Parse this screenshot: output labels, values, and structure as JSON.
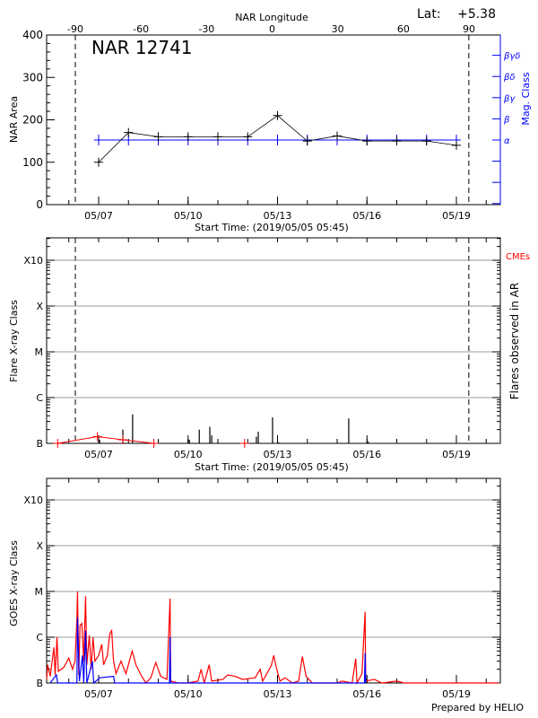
{
  "header": {
    "lat_label": "Lat:",
    "lat_value": "+5.38",
    "region_title": "NAR 12741"
  },
  "footer": {
    "credit": "Prepared by HELIO"
  },
  "colors": {
    "area": "#000000",
    "mag_class": "#0000ff",
    "cme": "#ff0000",
    "goes_long": "#ff0000",
    "goes_short": "#0000ff",
    "grid": "#999999"
  },
  "chart_data": [
    {
      "type": "line",
      "panel": "nar",
      "title": "NAR 12741",
      "xlabel": "Start Time: (2019/05/05 05:45)",
      "ylabel": "NAR Area",
      "y2label": "Mag. Class",
      "top_axis_label": "NAR Longitude",
      "top_ticks": [
        "-90",
        "-60",
        "-30",
        "0",
        "30",
        "60",
        "90"
      ],
      "x_ticks": [
        "05/07",
        "05/10",
        "05/13",
        "05/16",
        "05/19"
      ],
      "xlim": [
        "05/05 05:45",
        "05/20 11:00"
      ],
      "ylim": [
        0,
        400
      ],
      "y_ticks": [
        "0",
        "100",
        "200",
        "300",
        "400"
      ],
      "y2_ticks": [
        "α",
        "β",
        "βγ",
        "βδ",
        "βγδ"
      ],
      "limb_markers": [
        "05/06 05:15",
        "05/19 10:00"
      ],
      "series": [
        {
          "key": "area",
          "x": [
            "05/07",
            "05/08",
            "05/09",
            "05/10",
            "05/11",
            "05/12",
            "05/13",
            "05/14",
            "05/15",
            "05/16",
            "05/17",
            "05/18",
            "05/19"
          ],
          "values": [
            100,
            170,
            160,
            160,
            160,
            160,
            210,
            150,
            162,
            150,
            150,
            150,
            140
          ]
        },
        {
          "key": "mag_class",
          "x": [
            "05/07",
            "05/08",
            "05/09",
            "05/10",
            "05/11",
            "05/12",
            "05/13",
            "05/14",
            "05/15",
            "05/16",
            "05/17",
            "05/18",
            "05/19"
          ],
          "values": [
            "α",
            "α",
            "α",
            "α",
            "α",
            "α",
            "α",
            "α",
            "α",
            "α",
            "α",
            "α",
            "α"
          ]
        }
      ]
    },
    {
      "type": "bar",
      "panel": "flares",
      "xlabel": "Start Time: (2019/05/05 05:45)",
      "ylabel": "Flare X-ray Class",
      "y2label": "Flares observed in AR",
      "cme_label": "CMEs",
      "x_ticks": [
        "05/07",
        "05/10",
        "05/13",
        "05/16",
        "05/19"
      ],
      "y_ticks": [
        "B",
        "C",
        "M",
        "X",
        "X10"
      ],
      "yscale": "log",
      "grid": true,
      "limb_markers": [
        "05/06 05:15",
        "05/19 10:00"
      ],
      "flares": [
        {
          "t": "05/07 00:45",
          "flux": 1.2e-07
        },
        {
          "t": "05/07 19:30",
          "flux": 2e-07
        },
        {
          "t": "05/08 03:20",
          "flux": 4.3e-07
        },
        {
          "t": "05/10 01:00",
          "flux": 1.2e-07
        },
        {
          "t": "05/10 09:00",
          "flux": 2e-07
        },
        {
          "t": "05/10 17:30",
          "flux": 2.3e-07
        },
        {
          "t": "05/10 19:00",
          "flux": 1.5e-07
        },
        {
          "t": "05/11 00:00",
          "flux": 1.05e-07
        },
        {
          "t": "05/12 07:00",
          "flux": 1.4e-07
        },
        {
          "t": "05/12 08:30",
          "flux": 1.8e-07
        },
        {
          "t": "05/12 20:00",
          "flux": 3.7e-07
        },
        {
          "t": "05/13 01:00",
          "flux": 1.05e-07
        },
        {
          "t": "05/15 09:20",
          "flux": 3.5e-07
        },
        {
          "t": "05/16 01:00",
          "flux": 1.1e-07
        }
      ],
      "cmes": [
        {
          "t": "05/05 15:00",
          "flux": 1e-07
        },
        {
          "t": "05/06 23:00",
          "flux": 1.4e-07
        },
        {
          "t": "05/07 19:30",
          "flux": 1.2e-07
        },
        {
          "t": "05/08 20:30",
          "flux": 1e-07
        },
        {
          "t": "05/11 21:30",
          "flux": 1e-07
        }
      ]
    },
    {
      "type": "line",
      "panel": "goes",
      "ylabel": "GOES X-ray Class",
      "x_ticks": [
        "05/07",
        "05/10",
        "05/13",
        "05/16",
        "05/19"
      ],
      "y_ticks": [
        "B",
        "C",
        "M",
        "X",
        "X10"
      ],
      "yscale": "log",
      "grid": true,
      "series": [
        {
          "key": "goes_long",
          "points": [
            [
              "05/05 06:00",
              1.2e-07
            ],
            [
              "05/05 07:00",
              2.5e-07
            ],
            [
              "05/05 09:00",
              1.4e-07
            ],
            [
              "05/05 12:00",
              6e-07
            ],
            [
              "05/05 13:00",
              1.5e-07
            ],
            [
              "05/05 14:30",
              1e-06
            ],
            [
              "05/05 15:30",
              1.8e-07
            ],
            [
              "05/05 20:00",
              2.2e-07
            ],
            [
              "05/06 00:00",
              3.5e-07
            ],
            [
              "05/06 03:00",
              2e-07
            ],
            [
              "05/06 05:00",
              3e-07
            ],
            [
              "05/06 06:30",
              2.5e-06
            ],
            [
              "05/06 07:00",
              1e-05
            ],
            [
              "05/06 08:00",
              1.5e-07
            ],
            [
              "05/06 09:00",
              1.8e-06
            ],
            [
              "05/06 10:30",
              2e-06
            ],
            [
              "05/06 12:00",
              3e-07
            ],
            [
              "05/06 13:30",
              7.9e-06
            ],
            [
              "05/06 14:30",
              2.5e-07
            ],
            [
              "05/06 16:30",
              1.1e-06
            ],
            [
              "05/06 18:00",
              2e-07
            ],
            [
              "05/06 19:30",
              1e-06
            ],
            [
              "05/06 21:00",
              3e-07
            ],
            [
              "05/07 00:00",
              4e-07
            ],
            [
              "05/07 02:30",
              7e-07
            ],
            [
              "05/07 04:00",
              2.5e-07
            ],
            [
              "05/07 07:00",
              4e-07
            ],
            [
              "05/07 09:00",
              1.2e-06
            ],
            [
              "05/07 10:30",
              1.4e-06
            ],
            [
              "05/07 12:00",
              3e-07
            ],
            [
              "05/07 14:00",
              1.6e-07
            ],
            [
              "05/07 18:00",
              3e-07
            ],
            [
              "05/07 22:00",
              1.6e-07
            ],
            [
              "05/08 03:00",
              5e-07
            ],
            [
              "05/08 06:00",
              2.5e-07
            ],
            [
              "05/08 10:00",
              1.5e-07
            ],
            [
              "05/08 14:00",
              1e-07
            ],
            [
              "05/08 18:00",
              1.3e-07
            ],
            [
              "05/08 22:00",
              2.8e-07
            ],
            [
              "05/09 02:00",
              1.4e-07
            ],
            [
              "05/09 07:00",
              1.2e-07
            ],
            [
              "05/09 09:30",
              7e-06
            ],
            [
              "05/09 10:00",
              1.1e-07
            ],
            [
              "05/09 16:00",
              1e-07
            ],
            [
              "05/10 00:00",
              1e-07
            ],
            [
              "05/10 08:00",
              1.1e-07
            ],
            [
              "05/10 10:30",
              2e-07
            ],
            [
              "05/10 13:00",
              1e-07
            ],
            [
              "05/10 17:00",
              2.5e-07
            ],
            [
              "05/10 19:00",
              1.1e-07
            ],
            [
              "05/11 04:00",
              1.2e-07
            ],
            [
              "05/11 08:00",
              1.5e-07
            ],
            [
              "05/11 14:00",
              1.4e-07
            ],
            [
              "05/11 20:00",
              1.2e-07
            ],
            [
              "05/12 06:00",
              1.3e-07
            ],
            [
              "05/12 10:00",
              2e-07
            ],
            [
              "05/12 12:00",
              1.1e-07
            ],
            [
              "05/12 19:00",
              2.4e-07
            ],
            [
              "05/12 21:00",
              4e-07
            ],
            [
              "05/12 23:00",
              2.2e-07
            ],
            [
              "05/13 02:00",
              1.1e-07
            ],
            [
              "05/13 06:00",
              1.3e-07
            ],
            [
              "05/13 12:00",
              1e-07
            ],
            [
              "05/13 17:00",
              1.1e-07
            ],
            [
              "05/13 20:00",
              3.8e-07
            ],
            [
              "05/13 23:00",
              1.4e-07
            ],
            [
              "05/14 04:00",
              1e-07
            ],
            [
              "05/14 12:00",
              1e-07
            ],
            [
              "05/15 00:00",
              1e-07
            ],
            [
              "05/15 04:00",
              1.1e-07
            ],
            [
              "05/15 12:00",
              1e-07
            ],
            [
              "05/15 15:00",
              3.4e-07
            ],
            [
              "05/15 16:00",
              1e-07
            ],
            [
              "05/15 20:00",
              1.6e-07
            ],
            [
              "05/15 22:30",
              3.6e-06
            ],
            [
              "05/15 23:00",
              1.1e-07
            ],
            [
              "05/16 06:00",
              1.2e-07
            ],
            [
              "05/16 12:00",
              1e-07
            ],
            [
              "05/17 00:00",
              1.1e-07
            ],
            [
              "05/17 06:00",
              1e-07
            ],
            [
              "05/20 10:00",
              1e-07
            ]
          ]
        },
        {
          "key": "goes_short",
          "points": [
            [
              "05/05 09:00",
              1e-07
            ],
            [
              "05/05 14:00",
              1.5e-07
            ],
            [
              "05/05 15:00",
              1e-07
            ],
            [
              "05/06 06:30",
              1e-07
            ],
            [
              "05/06 07:00",
              2.7e-06
            ],
            [
              "05/06 08:30",
              1.1e-07
            ],
            [
              "05/06 11:00",
              4e-07
            ],
            [
              "05/06 12:00",
              1e-07
            ],
            [
              "05/06 13:30",
              1.4e-06
            ],
            [
              "05/06 14:30",
              1e-07
            ],
            [
              "05/06 19:00",
              3e-07
            ],
            [
              "05/06 20:00",
              1e-07
            ],
            [
              "05/07 01:00",
              1.3e-07
            ],
            [
              "05/07 12:00",
              1.4e-07
            ],
            [
              "05/07 13:00",
              1e-07
            ],
            [
              "05/09 09:00",
              1e-07
            ],
            [
              "05/09 09:30",
              1e-06
            ],
            [
              "05/09 10:00",
              1e-07
            ],
            [
              "05/15 22:00",
              1e-07
            ],
            [
              "05/15 22:30",
              4.5e-07
            ],
            [
              "05/15 23:00",
              1e-07
            ]
          ]
        }
      ]
    }
  ]
}
